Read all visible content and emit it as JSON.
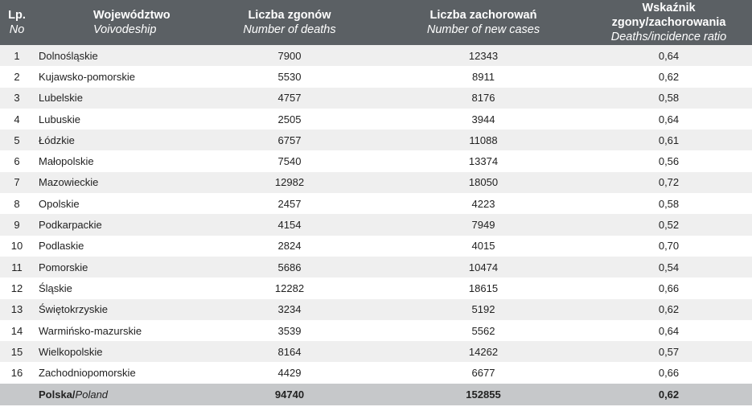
{
  "header": {
    "lp_pl": "Lp.",
    "lp_en": "No",
    "name_pl": "Województwo",
    "name_en": "Voivodeship",
    "deaths_pl": "Liczba zgonów",
    "deaths_en": "Number of deaths",
    "cases_pl": "Liczba zachorowań",
    "cases_en": "Number of new cases",
    "ratio_pl": "Wskaźnik zgony/zachorowania",
    "ratio_en": "Deaths/incidence ratio"
  },
  "rows": [
    {
      "no": "1",
      "name": "Dolnośląskie",
      "deaths": "7900",
      "cases": "12343",
      "ratio": "0,64"
    },
    {
      "no": "2",
      "name": "Kujawsko-pomorskie",
      "deaths": "5530",
      "cases": "8911",
      "ratio": "0,62"
    },
    {
      "no": "3",
      "name": "Lubelskie",
      "deaths": "4757",
      "cases": "8176",
      "ratio": "0,58"
    },
    {
      "no": "4",
      "name": "Lubuskie",
      "deaths": "2505",
      "cases": "3944",
      "ratio": "0,64"
    },
    {
      "no": "5",
      "name": "Łódzkie",
      "deaths": "6757",
      "cases": "11088",
      "ratio": "0,61"
    },
    {
      "no": "6",
      "name": "Małopolskie",
      "deaths": "7540",
      "cases": "13374",
      "ratio": "0,56"
    },
    {
      "no": "7",
      "name": "Mazowieckie",
      "deaths": "12982",
      "cases": "18050",
      "ratio": "0,72"
    },
    {
      "no": "8",
      "name": "Opolskie",
      "deaths": "2457",
      "cases": "4223",
      "ratio": "0,58"
    },
    {
      "no": "9",
      "name": "Podkarpackie",
      "deaths": "4154",
      "cases": "7949",
      "ratio": "0,52"
    },
    {
      "no": "10",
      "name": "Podlaskie",
      "deaths": "2824",
      "cases": "4015",
      "ratio": "0,70"
    },
    {
      "no": "11",
      "name": "Pomorskie",
      "deaths": "5686",
      "cases": "10474",
      "ratio": "0,54"
    },
    {
      "no": "12",
      "name": "Śląskie",
      "deaths": "12282",
      "cases": "18615",
      "ratio": "0,66"
    },
    {
      "no": "13",
      "name": "Świętokrzyskie",
      "deaths": "3234",
      "cases": "5192",
      "ratio": "0,62"
    },
    {
      "no": "14",
      "name": "Warmińsko-mazurskie",
      "deaths": "3539",
      "cases": "5562",
      "ratio": "0,64"
    },
    {
      "no": "15",
      "name": "Wielkopolskie",
      "deaths": "8164",
      "cases": "14262",
      "ratio": "0,57"
    },
    {
      "no": "16",
      "name": "Zachodniopomorskie",
      "deaths": "4429",
      "cases": "6677",
      "ratio": "0,66"
    }
  ],
  "total": {
    "name_pl": "Polska",
    "name_en": "Poland",
    "deaths": "94740",
    "cases": "152855",
    "ratio": "0,62"
  },
  "colors": {
    "header_bg": "#5b6064",
    "row_stripe": "#efefef",
    "total_bg": "#c6c8ca"
  }
}
